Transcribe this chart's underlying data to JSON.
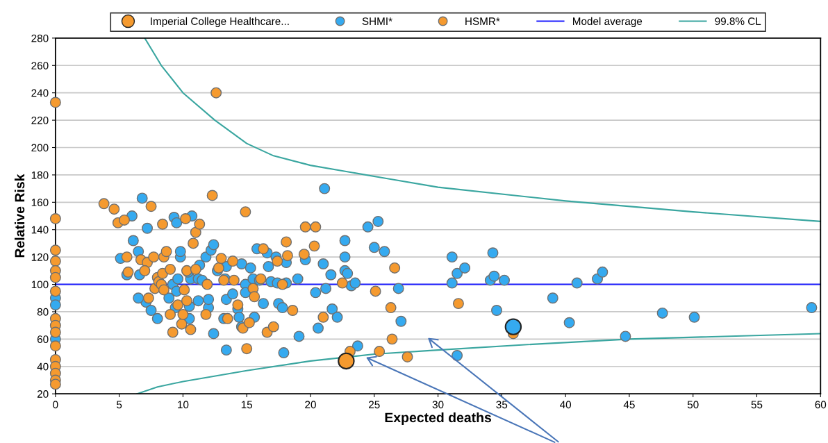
{
  "chart_data": {
    "type": "scatter",
    "xlabel": "Expected deaths",
    "ylabel": "Relative Risk",
    "xlim": [
      0,
      60
    ],
    "xticks": [
      0,
      5,
      10,
      15,
      20,
      25,
      30,
      35,
      40,
      45,
      50,
      55,
      60
    ],
    "ylim": [
      20,
      280
    ],
    "yticks": [
      20,
      40,
      60,
      80,
      100,
      120,
      140,
      160,
      180,
      200,
      220,
      240,
      260,
      280
    ],
    "grid": "y",
    "legend": "top",
    "ref_lines": [
      {
        "axis": "y",
        "value": 100,
        "label": "Model average",
        "color": "#1f1fff",
        "line_style": "solid"
      }
    ],
    "series": [
      {
        "name": "Imperial College Healthcare...",
        "marker": "circle",
        "color": "#f59a2f",
        "colors": [
          "#f59a2f",
          "#35aaf0"
        ],
        "x": [
          22.8,
          35.9
        ],
        "values": [
          44,
          69
        ]
      },
      {
        "name": "SHMI*",
        "marker": "circle",
        "color": "#35aaf0",
        "x": [
          6.8,
          6,
          9.3,
          10.7,
          9.5,
          7.2,
          6.1,
          11.8,
          12.2,
          12.4,
          6.5,
          5.1,
          6.6,
          5.6,
          7.1,
          7.5,
          8,
          6.5,
          8.9,
          9.4,
          9.2,
          9.6,
          9.8,
          9.8,
          9.5,
          10.5,
          10.5,
          10.6,
          10.4,
          11.2,
          11.2,
          11.3,
          11.5,
          12.0,
          12.0,
          12.4,
          12.7,
          13.2,
          13.4,
          13.4,
          13.4,
          13.3,
          13.9,
          14.3,
          14.4,
          14.6,
          14.6,
          14.9,
          14.9,
          15.3,
          15.5,
          15.6,
          15.8,
          16.0,
          16.3,
          16.6,
          16.7,
          16.9,
          17.3,
          17.4,
          17.5,
          17.8,
          17.9,
          18.1,
          18.1,
          19.0,
          19.1,
          19.6,
          20.4,
          20.6,
          21.0,
          21.1,
          21.2,
          21.6,
          21.7,
          22.1,
          22.7,
          22.7,
          22.7,
          22.9,
          23.2,
          23.5,
          23.7,
          24.5,
          25.0,
          25.3,
          25.8,
          26.9,
          27.1,
          31.1,
          31.1,
          31.5,
          32.1,
          31.5,
          34.1,
          34.3,
          34.4,
          35.2,
          34.6,
          39,
          40.3,
          40.9,
          42.5,
          42.9,
          44.7,
          47.6,
          50.1,
          59.3,
          0,
          0,
          0
        ],
        "values": [
          163,
          150,
          149,
          150,
          145,
          141,
          132,
          120,
          125,
          129,
          124,
          119,
          107,
          107,
          87,
          81,
          75,
          90,
          90,
          83,
          100,
          104,
          120,
          124,
          95,
          84,
          75,
          104,
          109,
          88,
          104,
          114,
          103,
          83,
          89,
          64,
          110,
          75,
          52,
          89,
          113,
          104,
          93,
          82,
          76,
          69,
          115,
          100,
          94,
          112,
          104,
          76,
          126,
          103,
          86,
          123,
          113,
          102,
          120,
          101,
          86,
          83,
          50,
          116,
          101,
          104,
          62,
          118,
          94,
          68,
          115,
          170,
          97,
          107,
          82,
          76,
          132,
          120,
          110,
          108,
          99,
          101,
          55,
          142,
          127,
          146,
          124,
          97,
          73,
          120,
          101,
          108,
          112,
          48,
          103,
          123,
          106,
          103,
          81,
          90,
          72,
          101,
          104,
          109,
          62,
          79,
          76,
          83,
          90,
          60,
          85
        ]
      },
      {
        "name": "HSMR*",
        "marker": "circle",
        "color": "#f59a2f",
        "x": [
          0,
          0,
          0,
          0,
          0,
          0,
          0,
          0,
          0,
          0,
          0,
          0,
          0,
          0,
          0,
          0,
          3.8,
          4.6,
          4.9,
          5.4,
          5.6,
          5.7,
          6.7,
          7.2,
          7.0,
          7.3,
          7.7,
          7.8,
          8.0,
          8.4,
          7.5,
          8.1,
          8.3,
          8.5,
          8.4,
          8.5,
          8.7,
          9.0,
          9.0,
          9.2,
          9.6,
          9.9,
          10.0,
          10.3,
          10.1,
          10.3,
          10.6,
          10.8,
          11.0,
          11.3,
          10.2,
          11.0,
          11.8,
          11.9,
          12.3,
          12.6,
          12.8,
          13.0,
          13.2,
          13.5,
          13.9,
          14.0,
          14.3,
          14.7,
          14.9,
          15.0,
          15.2,
          15.5,
          15.6,
          16.1,
          16.3,
          16.6,
          17.1,
          17.4,
          17.8,
          18.1,
          18.2,
          18.6,
          19.5,
          19.6,
          20.4,
          20.3,
          21.0,
          22.5,
          23.1,
          25.1,
          25.4,
          26.3,
          26.4,
          26.6,
          27.6,
          31.6,
          35.9
        ],
        "values": [
          233,
          148,
          125,
          117,
          110,
          105,
          95,
          75,
          70,
          65,
          55,
          45,
          40,
          35,
          30,
          27,
          159,
          155,
          145,
          147,
          120,
          109,
          118,
          116,
          110,
          90,
          120,
          97,
          105,
          144,
          157,
          102,
          100,
          96,
          108,
          120,
          124,
          111,
          78,
          65,
          85,
          71,
          78,
          110,
          96,
          88,
          67,
          130,
          138,
          144,
          148,
          111,
          78,
          100,
          165,
          240,
          112,
          119,
          103,
          75,
          117,
          103,
          85,
          68,
          153,
          53,
          72,
          97,
          91,
          104,
          126,
          65,
          69,
          117,
          100,
          131,
          121,
          81,
          122,
          142,
          142,
          128,
          76,
          101,
          51,
          95,
          51,
          83,
          60,
          112,
          47,
          86,
          64
        ]
      },
      {
        "name": "99.8% CL",
        "type": "line",
        "marker": "none",
        "color": "#3aa6a0",
        "x": [
          7,
          8.3,
          10,
          12.5,
          15,
          17.1,
          20,
          26.2,
          30,
          40,
          50,
          60,
          null,
          6.4,
          8,
          10,
          15,
          20,
          25,
          30,
          37,
          45,
          60
        ],
        "values": [
          280,
          260,
          240,
          220,
          203,
          194,
          187,
          177,
          171,
          161,
          153,
          146,
          null,
          20,
          25,
          29,
          37,
          44,
          49,
          52,
          56,
          60,
          64
        ]
      }
    ]
  }
}
